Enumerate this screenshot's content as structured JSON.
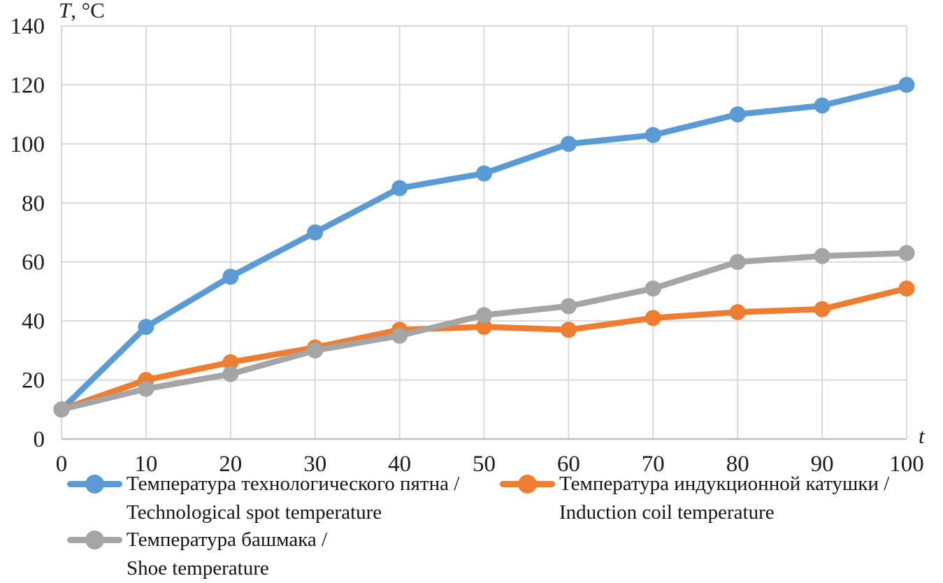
{
  "chart_data": {
    "type": "line",
    "title": "",
    "xlabel": "t",
    "ylabel": "T, °C",
    "xlim": [
      0,
      100
    ],
    "ylim": [
      0,
      140
    ],
    "grid": true,
    "legend_position": "bottom",
    "x": [
      0,
      10,
      20,
      30,
      40,
      50,
      60,
      70,
      80,
      90,
      100
    ],
    "x_tick_labels": [
      "0",
      "10",
      "20",
      "30",
      "40",
      "50",
      "60",
      "70",
      "80",
      "90",
      "100"
    ],
    "y_ticks": [
      0,
      20,
      40,
      60,
      80,
      100,
      120,
      140
    ],
    "y_tick_labels": [
      "0",
      "20",
      "40",
      "60",
      "80",
      "100",
      "120",
      "140"
    ],
    "series": [
      {
        "name": "Температура технологического пятна / Technological spot temperature",
        "color": "#5B9BD5",
        "values": [
          10,
          38,
          55,
          70,
          85,
          90,
          100,
          103,
          110,
          113,
          120
        ]
      },
      {
        "name": "Температура индукционной катушки / Induction coil temperature",
        "color": "#ED7D31",
        "values": [
          10,
          20,
          26,
          31,
          37,
          38,
          37,
          41,
          43,
          44,
          51
        ]
      },
      {
        "name": "Температура башмака / Shoe temperature",
        "color": "#A5A5A5",
        "values": [
          10,
          17,
          22,
          30,
          35,
          42,
          45,
          51,
          60,
          62,
          63
        ]
      }
    ]
  },
  "axes": {
    "y_title": "T, °C",
    "x_title": "t"
  },
  "legend": {
    "items": [
      {
        "line1": "Температура технологического пятна /",
        "line2": "Technological spot temperature",
        "color": "#5B9BD5"
      },
      {
        "line1": "Температура индукционной катушки /",
        "line2": "Induction coil temperature",
        "color": "#ED7D31"
      },
      {
        "line1": "Температура башмака /",
        "line2": "Shoe temperature",
        "color": "#A5A5A5"
      }
    ]
  },
  "colors": {
    "grid": "#D9D9D9",
    "axis_line": "#BFBFBF",
    "text": "#1c1c1c",
    "background": "#FFFFFF"
  }
}
